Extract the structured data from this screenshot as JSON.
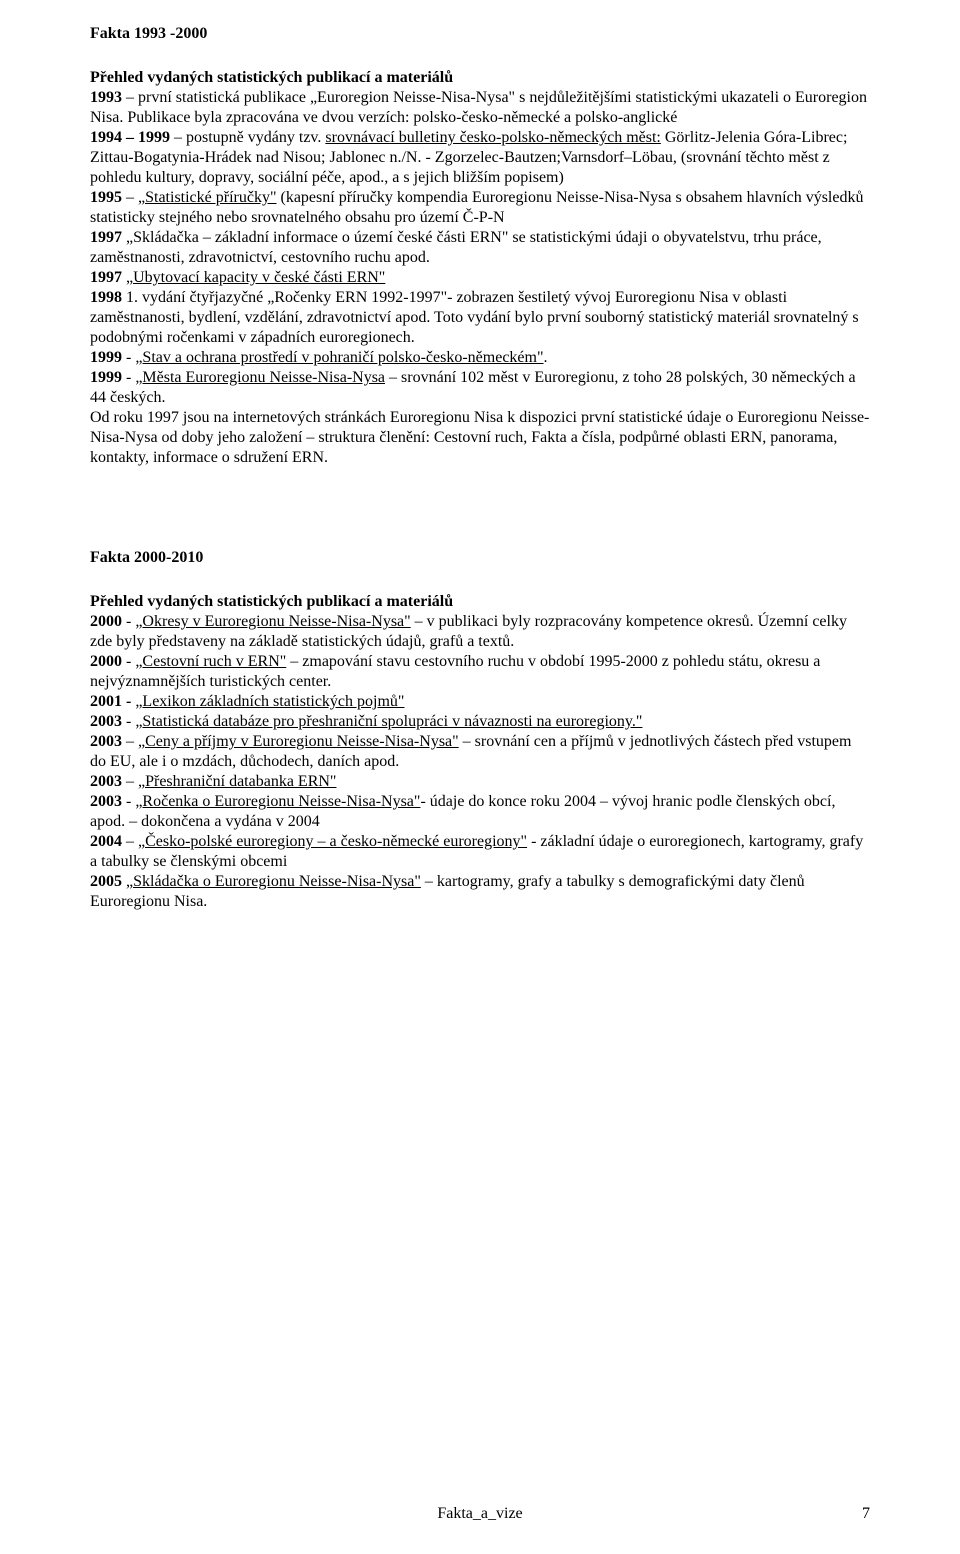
{
  "section1": {
    "heading": "Fakta 1993 -2000",
    "subtitle": "Přehled vydaných statistických publikací a materiálů",
    "y1993_a": "1993",
    "y1993_b": " – první statistická publikace „Euroregion Neisse-Nisa-Nysa\" s nejdůležitějšími statistickými ukazateli o Euroregion Nisa. Publikace byla zpracována ve dvou verzích: polsko-česko-německé a polsko-anglické",
    "y1994_a": "1994 – 1999",
    "y1994_b": " – postupně vydány tzv. ",
    "y1994_c": "srovnávací bulletiny česko-polsko-německých měst:",
    "y1994_d": " Görlitz-Jelenia Góra-Librec;  Zittau-Bogatynia-Hrádek nad Nisou;  Jablonec n./N. - Zgorzelec-Bautzen;Varnsdorf–Löbau, (srovnání těchto měst z pohledu kultury, dopravy, sociální péče, apod., a s jejich bližším popisem)",
    "y1995_a": "1995",
    "y1995_b": " – ",
    "y1995_c": "„Statistické příručky\"",
    "y1995_d": " (kapesní příručky kompendia Euroregionu Neisse-Nisa-Nysa s obsahem hlavních výsledků statisticky stejného nebo srovnatelného obsahu pro území Č-P-N",
    "y1997_a": "1997",
    "y1997_b": " „Skládačka – základní informace o území české části ERN\" se statistickými údaji o obyvatelstvu, trhu práce, zaměstnanosti, zdravotnictví, cestovního ruchu apod.",
    "y1997b_a": "1997",
    "y1997b_b": " ",
    "y1997b_c": "„Ubytovací kapacity v české části ERN\"",
    "y1998_a": "1998",
    "y1998_b": " 1. vydání čtyřjazyčné „Ročenky ERN 1992-1997\"- zobrazen šestiletý vývoj Euroregionu Nisa v oblasti zaměstnanosti, bydlení, vzdělání, zdravotnictví apod. Toto vydání bylo první souborný statistický materiál srovnatelný s podobnými ročenkami v západních euroregionech.",
    "y1999a_a": "1999",
    "y1999a_b": " - ",
    "y1999a_c": "„Stav a ochrana prostředí v pohraničí polsko-česko-německém\"",
    "y1999a_d": ".",
    "y1999b_a": "1999",
    "y1999b_b": " - ",
    "y1999b_c": "„Města Euroregionu Neisse-Nisa-Nysa",
    "y1999b_d": " – srovnání 102 měst v Euroregionu, z toho 28 polských, 30 německých a 44 českých.",
    "trailer": "Od roku 1997 jsou na internetových stránkách Euroregionu Nisa k dispozici první statistické údaje o Euroregionu Neisse-Nisa-Nysa od doby jeho založení – struktura členění: Cestovní ruch, Fakta a čísla, podpůrné oblasti ERN, panorama, kontakty, informace o sdružení ERN."
  },
  "section2": {
    "heading": "Fakta 2000-2010",
    "subtitle": "Přehled vydaných statistických publikací a materiálů",
    "y2000a_a": "2000",
    "y2000a_b": " - ",
    "y2000a_c": "„Okresy v Euroregionu Neisse-Nisa-Nysa\"",
    "y2000a_d": " – v publikaci byly rozpracovány kompetence okresů. Územní celky zde byly představeny na základě statistických údajů, grafů a textů.",
    "y2000b_a": "2000",
    "y2000b_b": " - ",
    "y2000b_c": "„Cestovní ruch v ERN\"",
    "y2000b_d": " – zmapování stavu cestovního ruchu v období 1995-2000 z pohledu státu, okresu a nejvýznamnějších turistických center.",
    "y2001_a": "2001 -",
    "y2001_b": " ",
    "y2001_c": "„Lexikon základních statistických pojmů\"",
    "y2003a_a": "2003",
    "y2003a_b": " - ",
    "y2003a_c": "„Statistická databáze pro přeshraniční spolupráci v návaznosti na euroregiony.\"",
    "y2003b_a": "2003",
    "y2003b_b": " – ",
    "y2003b_c": "„Ceny a příjmy v Euroregionu Neisse-Nisa-Nysa\"",
    "y2003b_d": " – srovnání cen a příjmů v jednotlivých částech před vstupem do EU, ale i o mzdách, důchodech, daních apod.",
    "y2003c_a": "2003",
    "y2003c_b": " – ",
    "y2003c_c": "„Přeshraniční databanka ERN\"",
    "y2003d_a": "2003",
    "y2003d_b": " - ",
    "y2003d_c": "„Ročenka o Euroregionu Neisse-Nisa-Nysa\"",
    "y2003d_d": "- údaje do konce roku 2004 – vývoj hranic podle členských obcí, apod.   – dokončena a vydána v 2004",
    "y2004_a": "2004",
    "y2004_b": " – ",
    "y2004_c": "„Česko-polské euroregiony – a česko-německé euroregiony\"",
    "y2004_d": " - základní údaje o euroregionech, kartogramy, grafy a tabulky se členskými obcemi",
    "y2005_a": "2005",
    "y2005_b": " ",
    "y2005_c": "„Skládačka o Euroregionu Neisse-Nisa-Nysa\"",
    "y2005_d": " – kartogramy, grafy a tabulky s demografickými daty členů Euroregionu Nisa."
  },
  "footer": {
    "center": "Fakta_a_vize",
    "page": "7"
  }
}
